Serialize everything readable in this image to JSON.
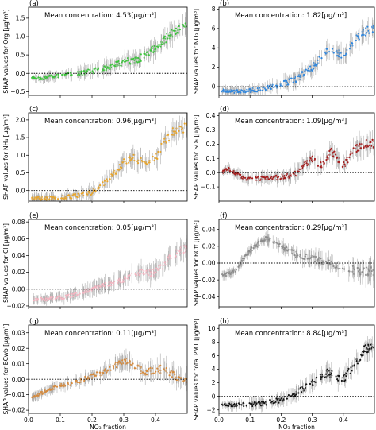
{
  "chart_data": [
    {
      "id": "a",
      "letter": "(a)",
      "type": "scatter",
      "mean_label": "Mean concentration: 4.53[μg/m³]",
      "ylabel": "SHAP values for Org [μg/m³]",
      "color": "#3cc43c",
      "ylim": [
        -0.6,
        1.8
      ],
      "yticks": [
        -0.5,
        0.0,
        0.5,
        1.0,
        1.5
      ],
      "ytick_labels": [
        "−0.5",
        "0.0",
        "0.5",
        "1.0",
        "1.5"
      ],
      "xlim": [
        0,
        0.5
      ],
      "xticks": [
        0,
        0.1,
        0.2,
        0.3,
        0.4
      ],
      "xtick_labels": [
        "",
        "",
        "",
        "",
        ""
      ],
      "xlabel": "",
      "trend": [
        [
          0.01,
          -0.1
        ],
        [
          0.03,
          -0.15
        ],
        [
          0.06,
          -0.1
        ],
        [
          0.1,
          -0.05
        ],
        [
          0.15,
          0.0
        ],
        [
          0.2,
          0.05
        ],
        [
          0.25,
          0.15
        ],
        [
          0.3,
          0.3
        ],
        [
          0.35,
          0.4
        ],
        [
          0.4,
          0.7
        ],
        [
          0.44,
          1.0
        ],
        [
          0.47,
          1.2
        ],
        [
          0.5,
          1.3
        ]
      ]
    },
    {
      "id": "b",
      "letter": "(b)",
      "type": "scatter",
      "mean_label": "Mean concentration: 1.82[μg/m³]",
      "ylabel": "SHAP values for NO₃ [μg/m³]",
      "color": "#2e86de",
      "ylim": [
        -0.9,
        8.2
      ],
      "yticks": [
        0,
        2,
        4,
        6,
        8
      ],
      "ytick_labels": [
        "0",
        "2",
        "4",
        "6",
        "8"
      ],
      "xlim": [
        0,
        0.5
      ],
      "xticks": [
        0,
        0.1,
        0.2,
        0.3,
        0.4
      ],
      "xtick_labels": [
        "",
        "",
        "",
        "",
        ""
      ],
      "xlabel": "",
      "trend": [
        [
          0.01,
          -0.4
        ],
        [
          0.05,
          -0.5
        ],
        [
          0.1,
          -0.4
        ],
        [
          0.15,
          -0.2
        ],
        [
          0.2,
          0.2
        ],
        [
          0.25,
          0.8
        ],
        [
          0.3,
          2.0
        ],
        [
          0.33,
          3.0
        ],
        [
          0.36,
          4.0
        ],
        [
          0.4,
          3.0
        ],
        [
          0.43,
          4.5
        ],
        [
          0.46,
          5.5
        ],
        [
          0.5,
          6.0
        ]
      ]
    },
    {
      "id": "c",
      "letter": "(c)",
      "type": "scatter",
      "mean_label": "Mean concentration: 0.96[μg/m³]",
      "ylabel": "SHAP values for NH₄ [μg/m³]",
      "color": "#e8a52c",
      "ylim": [
        -0.3,
        2.2
      ],
      "yticks": [
        0.0,
        0.5,
        1.0,
        1.5,
        2.0
      ],
      "ytick_labels": [
        "0.0",
        "0.5",
        "1.0",
        "1.5",
        "2.0"
      ],
      "xlim": [
        0,
        0.5
      ],
      "xticks": [
        0,
        0.1,
        0.2,
        0.3,
        0.4
      ],
      "xtick_labels": [
        "",
        "",
        "",
        "",
        ""
      ],
      "xlabel": "",
      "trend": [
        [
          0.01,
          -0.22
        ],
        [
          0.05,
          -0.22
        ],
        [
          0.1,
          -0.2
        ],
        [
          0.15,
          -0.15
        ],
        [
          0.2,
          -0.05
        ],
        [
          0.25,
          0.3
        ],
        [
          0.3,
          0.8
        ],
        [
          0.33,
          0.95
        ],
        [
          0.36,
          0.8
        ],
        [
          0.4,
          0.9
        ],
        [
          0.43,
          1.4
        ],
        [
          0.46,
          1.7
        ],
        [
          0.5,
          1.8
        ]
      ]
    },
    {
      "id": "d",
      "letter": "(d)",
      "type": "scatter",
      "mean_label": "Mean concentration: 1.09[μg/m³]",
      "ylabel": "SHAP values for SO₄ [μg/m³]",
      "color": "#a51c1c",
      "ylim": [
        -0.2,
        0.42
      ],
      "yticks": [
        -0.1,
        0.0,
        0.1,
        0.2,
        0.3,
        0.4
      ],
      "ytick_labels": [
        "−0.1",
        "0.0",
        "0.1",
        "0.2",
        "0.3",
        "0.4"
      ],
      "xlim": [
        0,
        0.5
      ],
      "xticks": [
        0,
        0.1,
        0.2,
        0.3,
        0.4
      ],
      "xtick_labels": [
        "",
        "",
        "",
        "",
        ""
      ],
      "xlabel": "",
      "trend": [
        [
          0.01,
          0.0
        ],
        [
          0.03,
          0.03
        ],
        [
          0.05,
          0.0
        ],
        [
          0.08,
          -0.04
        ],
        [
          0.15,
          -0.04
        ],
        [
          0.2,
          -0.03
        ],
        [
          0.24,
          -0.02
        ],
        [
          0.27,
          0.05
        ],
        [
          0.3,
          0.1
        ],
        [
          0.33,
          0.05
        ],
        [
          0.36,
          0.15
        ],
        [
          0.4,
          0.05
        ],
        [
          0.43,
          0.15
        ],
        [
          0.46,
          0.2
        ],
        [
          0.5,
          0.2
        ]
      ]
    },
    {
      "id": "e",
      "letter": "(e)",
      "type": "scatter",
      "mean_label": "Mean concentration: 0.05[μg/m³]",
      "ylabel": "SHAP values for Cl [μg/m³]",
      "color": "#f4b6c2",
      "ylim": [
        -0.021,
        0.083
      ],
      "yticks": [
        -0.02,
        0.0,
        0.02,
        0.04,
        0.06,
        0.08
      ],
      "ytick_labels": [
        "−0.02",
        "0.00",
        "0.02",
        "0.04",
        "0.06",
        "0.08"
      ],
      "xlim": [
        0,
        0.5
      ],
      "xticks": [
        0,
        0.1,
        0.2,
        0.3,
        0.4
      ],
      "xtick_labels": [
        "",
        "",
        "",
        "",
        ""
      ],
      "xlabel": "",
      "trend": [
        [
          0.01,
          -0.012
        ],
        [
          0.05,
          -0.012
        ],
        [
          0.1,
          -0.01
        ],
        [
          0.15,
          -0.006
        ],
        [
          0.2,
          0.0
        ],
        [
          0.25,
          0.005
        ],
        [
          0.3,
          0.012
        ],
        [
          0.35,
          0.02
        ],
        [
          0.4,
          0.02
        ],
        [
          0.44,
          0.035
        ],
        [
          0.47,
          0.045
        ],
        [
          0.5,
          0.05
        ]
      ]
    },
    {
      "id": "f",
      "letter": "(f)",
      "type": "scatter",
      "mean_label": "Mean concentration: 0.29[μg/m³]",
      "ylabel": "SHAP values for BCff [μg/m³]",
      "color": "#8c8c8c",
      "ylim": [
        -0.052,
        0.052
      ],
      "yticks": [
        -0.04,
        -0.02,
        0.0,
        0.02,
        0.04
      ],
      "ytick_labels": [
        "−0.04",
        "−0.02",
        "0.00",
        "0.02",
        "0.04"
      ],
      "xlim": [
        0,
        0.5
      ],
      "xticks": [
        0,
        0.1,
        0.2,
        0.3,
        0.4
      ],
      "xtick_labels": [
        "",
        "",
        "",
        "",
        ""
      ],
      "xlabel": "",
      "trend": [
        [
          0.01,
          -0.015
        ],
        [
          0.05,
          -0.01
        ],
        [
          0.1,
          0.015
        ],
        [
          0.15,
          0.03
        ],
        [
          0.2,
          0.02
        ],
        [
          0.25,
          0.01
        ],
        [
          0.3,
          0.005
        ],
        [
          0.35,
          0.0
        ],
        [
          0.4,
          -0.005
        ],
        [
          0.45,
          -0.01
        ],
        [
          0.5,
          -0.01
        ]
      ]
    },
    {
      "id": "g",
      "letter": "(g)",
      "type": "scatter",
      "mean_label": "Mean concentration: 0.11[μg/m³]",
      "ylabel": "SHAP values for BCwb [μg/m³]",
      "color": "#d68a3c",
      "ylim": [
        -0.022,
        0.035
      ],
      "yticks": [
        -0.02,
        -0.01,
        0.0,
        0.01,
        0.02,
        0.03
      ],
      "ytick_labels": [
        "−0.02",
        "−0.01",
        "0.00",
        "0.01",
        "0.02",
        "0.03"
      ],
      "xlim": [
        0,
        0.5
      ],
      "xticks": [
        0,
        0.1,
        0.2,
        0.3,
        0.4
      ],
      "xtick_labels": [
        "0.0",
        "0.1",
        "0.2",
        "0.3",
        "0.4"
      ],
      "xlabel": "NO₃ fraction",
      "trend": [
        [
          0.01,
          -0.012
        ],
        [
          0.05,
          -0.008
        ],
        [
          0.1,
          -0.004
        ],
        [
          0.15,
          -0.002
        ],
        [
          0.2,
          0.002
        ],
        [
          0.25,
          0.006
        ],
        [
          0.3,
          0.012
        ],
        [
          0.33,
          0.01
        ],
        [
          0.36,
          0.005
        ],
        [
          0.4,
          0.005
        ],
        [
          0.43,
          0.008
        ],
        [
          0.46,
          0.002
        ],
        [
          0.5,
          0.0
        ]
      ]
    },
    {
      "id": "h",
      "letter": "(h)",
      "type": "scatter",
      "mean_label": "Mean concentration: 8.84[μg/m³]",
      "ylabel": "SHAP values for total PM1 [μg/m³]",
      "color": "#111111",
      "ylim": [
        -2.5,
        10.5
      ],
      "yticks": [
        -2,
        0,
        2,
        4,
        6,
        8,
        10
      ],
      "ytick_labels": [
        "−2",
        "0",
        "2",
        "4",
        "6",
        "8",
        "10"
      ],
      "xlim": [
        0,
        0.5
      ],
      "xticks": [
        0,
        0.1,
        0.2,
        0.3,
        0.4
      ],
      "xtick_labels": [
        "0.0",
        "0.1",
        "0.2",
        "0.3",
        "0.4"
      ],
      "xlabel": "NO₃ fraction",
      "trend": [
        [
          0.01,
          -1.2
        ],
        [
          0.05,
          -1.3
        ],
        [
          0.1,
          -1.2
        ],
        [
          0.15,
          -1.0
        ],
        [
          0.2,
          -0.5
        ],
        [
          0.25,
          0.5
        ],
        [
          0.3,
          2.0
        ],
        [
          0.35,
          3.5
        ],
        [
          0.4,
          2.5
        ],
        [
          0.44,
          5.0
        ],
        [
          0.47,
          7.0
        ],
        [
          0.5,
          7.5
        ]
      ]
    }
  ]
}
